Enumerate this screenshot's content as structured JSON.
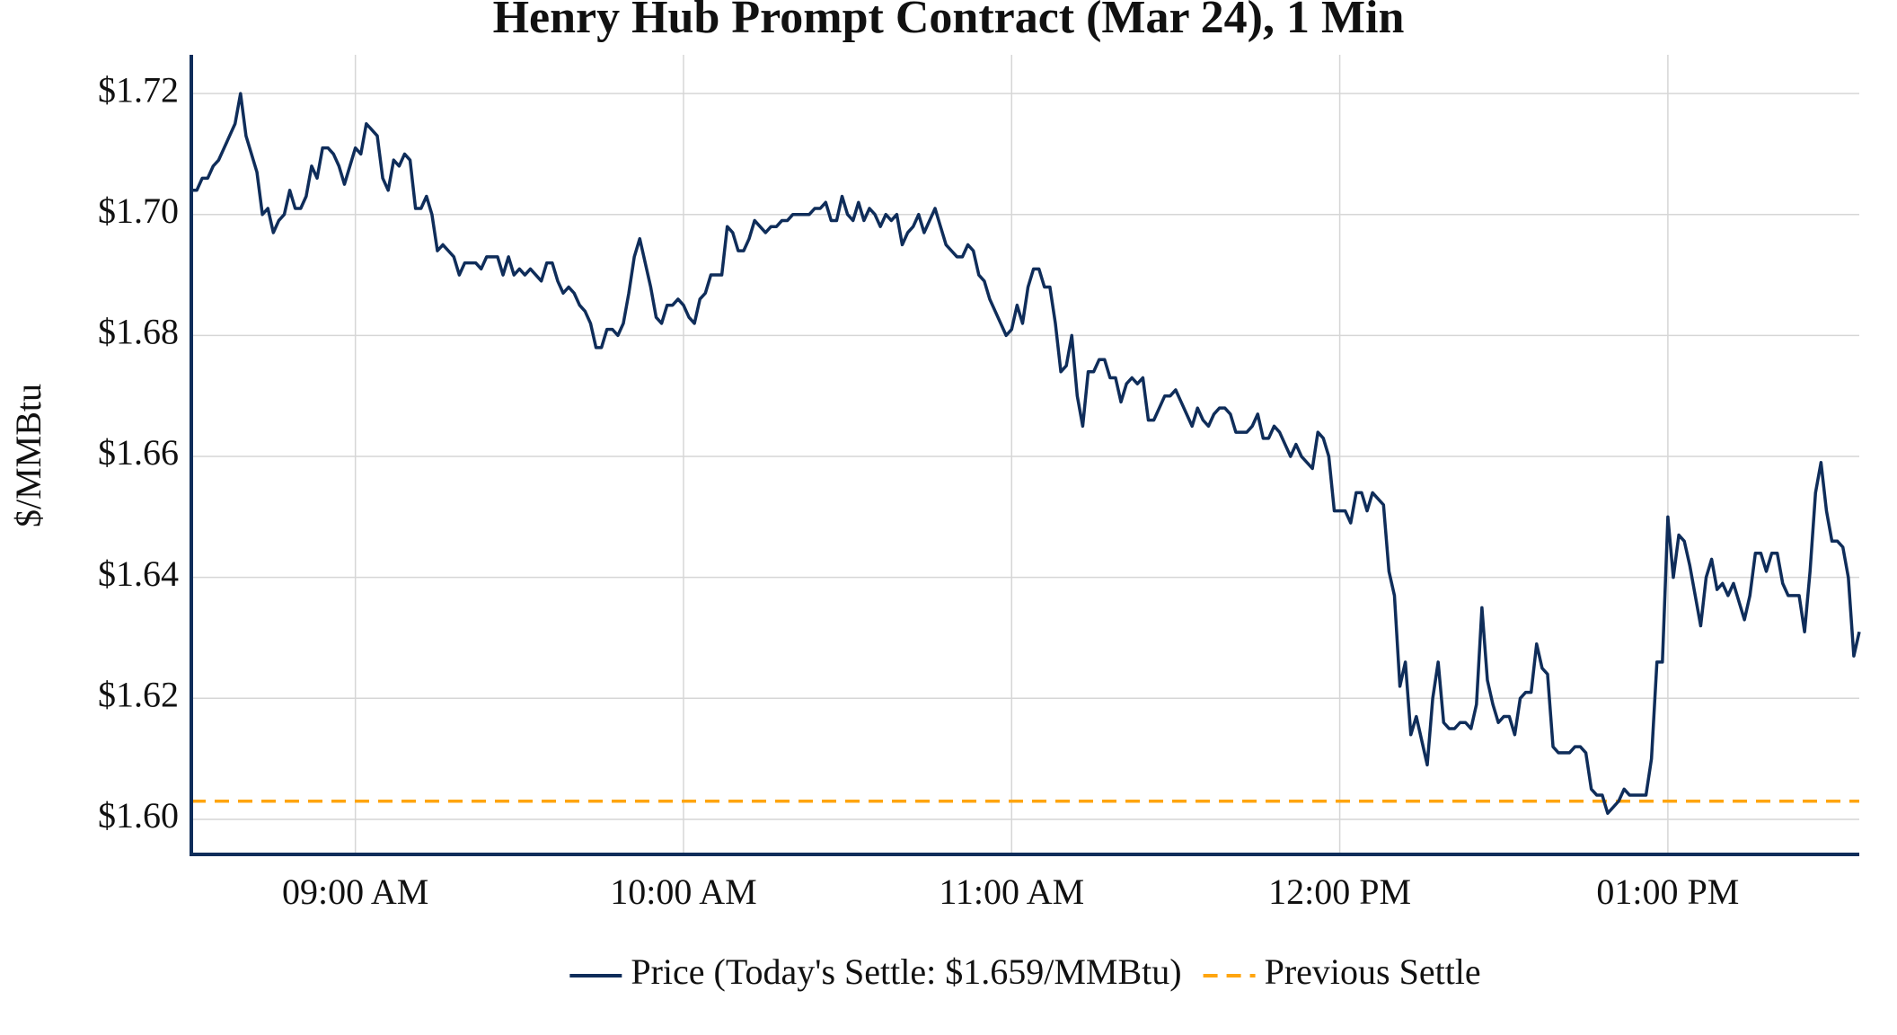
{
  "chart_data": {
    "type": "line",
    "title": "Henry Hub Prompt Contract (Mar 24), 1 Min",
    "y_label": "$/MMBtu",
    "x": [
      "08:30 AM",
      "08:31 AM",
      "08:32 AM",
      "08:33 AM",
      "08:34 AM",
      "08:35 AM",
      "08:36 AM",
      "08:37 AM",
      "08:38 AM",
      "08:39 AM",
      "08:40 AM",
      "08:41 AM",
      "08:42 AM",
      "08:43 AM",
      "08:44 AM",
      "08:45 AM",
      "08:46 AM",
      "08:47 AM",
      "08:48 AM",
      "08:49 AM",
      "08:50 AM",
      "08:51 AM",
      "08:52 AM",
      "08:53 AM",
      "08:54 AM",
      "08:55 AM",
      "08:56 AM",
      "08:57 AM",
      "08:58 AM",
      "08:59 AM",
      "09:00 AM",
      "09:01 AM",
      "09:02 AM",
      "09:03 AM",
      "09:04 AM",
      "09:05 AM",
      "09:06 AM",
      "09:07 AM",
      "09:08 AM",
      "09:09 AM",
      "09:10 AM",
      "09:11 AM",
      "09:12 AM",
      "09:13 AM",
      "09:14 AM",
      "09:15 AM",
      "09:16 AM",
      "09:17 AM",
      "09:18 AM",
      "09:19 AM",
      "09:20 AM",
      "09:21 AM",
      "09:22 AM",
      "09:23 AM",
      "09:24 AM",
      "09:25 AM",
      "09:26 AM",
      "09:27 AM",
      "09:28 AM",
      "09:29 AM",
      "09:30 AM",
      "09:31 AM",
      "09:32 AM",
      "09:33 AM",
      "09:34 AM",
      "09:35 AM",
      "09:36 AM",
      "09:37 AM",
      "09:38 AM",
      "09:39 AM",
      "09:40 AM",
      "09:41 AM",
      "09:42 AM",
      "09:43 AM",
      "09:44 AM",
      "09:45 AM",
      "09:46 AM",
      "09:47 AM",
      "09:48 AM",
      "09:49 AM",
      "09:50 AM",
      "09:51 AM",
      "09:52 AM",
      "09:53 AM",
      "09:54 AM",
      "09:55 AM",
      "09:56 AM",
      "09:57 AM",
      "09:58 AM",
      "09:59 AM",
      "10:00 AM",
      "10:01 AM",
      "10:02 AM",
      "10:03 AM",
      "10:04 AM",
      "10:05 AM",
      "10:06 AM",
      "10:07 AM",
      "10:08 AM",
      "10:09 AM",
      "10:10 AM",
      "10:11 AM",
      "10:12 AM",
      "10:13 AM",
      "10:14 AM",
      "10:15 AM",
      "10:16 AM",
      "10:17 AM",
      "10:18 AM",
      "10:19 AM",
      "10:20 AM",
      "10:21 AM",
      "10:22 AM",
      "10:23 AM",
      "10:24 AM",
      "10:25 AM",
      "10:26 AM",
      "10:27 AM",
      "10:28 AM",
      "10:29 AM",
      "10:30 AM",
      "10:31 AM",
      "10:32 AM",
      "10:33 AM",
      "10:34 AM",
      "10:35 AM",
      "10:36 AM",
      "10:37 AM",
      "10:38 AM",
      "10:39 AM",
      "10:40 AM",
      "10:41 AM",
      "10:42 AM",
      "10:43 AM",
      "10:44 AM",
      "10:45 AM",
      "10:46 AM",
      "10:47 AM",
      "10:48 AM",
      "10:49 AM",
      "10:50 AM",
      "10:51 AM",
      "10:52 AM",
      "10:53 AM",
      "10:54 AM",
      "10:55 AM",
      "10:56 AM",
      "10:57 AM",
      "10:58 AM",
      "10:59 AM",
      "11:00 AM",
      "11:01 AM",
      "11:02 AM",
      "11:03 AM",
      "11:04 AM",
      "11:05 AM",
      "11:06 AM",
      "11:07 AM",
      "11:08 AM",
      "11:09 AM",
      "11:10 AM",
      "11:11 AM",
      "11:12 AM",
      "11:13 AM",
      "11:14 AM",
      "11:15 AM",
      "11:16 AM",
      "11:17 AM",
      "11:18 AM",
      "11:19 AM",
      "11:20 AM",
      "11:21 AM",
      "11:22 AM",
      "11:23 AM",
      "11:24 AM",
      "11:25 AM",
      "11:26 AM",
      "11:27 AM",
      "11:28 AM",
      "11:29 AM",
      "11:30 AM",
      "11:31 AM",
      "11:32 AM",
      "11:33 AM",
      "11:34 AM",
      "11:35 AM",
      "11:36 AM",
      "11:37 AM",
      "11:38 AM",
      "11:39 AM",
      "11:40 AM",
      "11:41 AM",
      "11:42 AM",
      "11:43 AM",
      "11:44 AM",
      "11:45 AM",
      "11:46 AM",
      "11:47 AM",
      "11:48 AM",
      "11:49 AM",
      "11:50 AM",
      "11:51 AM",
      "11:52 AM",
      "11:53 AM",
      "11:54 AM",
      "11:55 AM",
      "11:56 AM",
      "11:57 AM",
      "11:58 AM",
      "11:59 AM",
      "12:00 PM",
      "12:01 PM",
      "12:02 PM",
      "12:03 PM",
      "12:04 PM",
      "12:05 PM",
      "12:06 PM",
      "12:07 PM",
      "12:08 PM",
      "12:09 PM",
      "12:10 PM",
      "12:11 PM",
      "12:12 PM",
      "12:13 PM",
      "12:14 PM",
      "12:15 PM",
      "12:16 PM",
      "12:17 PM",
      "12:18 PM",
      "12:19 PM",
      "12:20 PM",
      "12:21 PM",
      "12:22 PM",
      "12:23 PM",
      "12:24 PM",
      "12:25 PM",
      "12:26 PM",
      "12:27 PM",
      "12:28 PM",
      "12:29 PM",
      "12:30 PM",
      "12:31 PM",
      "12:32 PM",
      "12:33 PM",
      "12:34 PM",
      "12:35 PM",
      "12:36 PM",
      "12:37 PM",
      "12:38 PM",
      "12:39 PM",
      "12:40 PM",
      "12:41 PM",
      "12:42 PM",
      "12:43 PM",
      "12:44 PM",
      "12:45 PM",
      "12:46 PM",
      "12:47 PM",
      "12:48 PM",
      "12:49 PM",
      "12:50 PM",
      "12:51 PM",
      "12:52 PM",
      "12:53 PM",
      "12:54 PM",
      "12:55 PM",
      "12:56 PM",
      "12:57 PM",
      "12:58 PM",
      "12:59 PM",
      "01:00 PM",
      "01:01 PM",
      "01:02 PM",
      "01:03 PM",
      "01:04 PM",
      "01:05 PM",
      "01:06 PM",
      "01:07 PM",
      "01:08 PM",
      "01:09 PM",
      "01:10 PM",
      "01:11 PM",
      "01:12 PM",
      "01:13 PM",
      "01:14 PM",
      "01:15 PM",
      "01:16 PM",
      "01:17 PM",
      "01:18 PM",
      "01:19 PM",
      "01:20 PM",
      "01:21 PM",
      "01:22 PM",
      "01:23 PM",
      "01:24 PM",
      "01:25 PM",
      "01:26 PM",
      "01:27 PM",
      "01:28 PM",
      "01:29 PM",
      "01:30 PM",
      "01:31 PM",
      "01:32 PM",
      "01:33 PM",
      "01:34 PM",
      "01:35 PM"
    ],
    "series": [
      {
        "name": "Price (Today's Settle: $1.659/MMBtu)",
        "color": "#0f2d5a",
        "values": [
          1.704,
          1.704,
          1.706,
          1.706,
          1.708,
          1.709,
          1.711,
          1.713,
          1.715,
          1.72,
          1.713,
          1.71,
          1.707,
          1.7,
          1.701,
          1.697,
          1.699,
          1.7,
          1.704,
          1.701,
          1.701,
          1.703,
          1.708,
          1.706,
          1.711,
          1.711,
          1.71,
          1.708,
          1.705,
          1.708,
          1.711,
          1.71,
          1.715,
          1.714,
          1.713,
          1.706,
          1.704,
          1.709,
          1.708,
          1.71,
          1.709,
          1.701,
          1.701,
          1.703,
          1.7,
          1.694,
          1.695,
          1.694,
          1.693,
          1.69,
          1.692,
          1.692,
          1.692,
          1.691,
          1.693,
          1.693,
          1.693,
          1.69,
          1.693,
          1.69,
          1.691,
          1.69,
          1.691,
          1.69,
          1.689,
          1.692,
          1.692,
          1.689,
          1.687,
          1.688,
          1.687,
          1.685,
          1.684,
          1.682,
          1.678,
          1.678,
          1.681,
          1.681,
          1.68,
          1.682,
          1.687,
          1.693,
          1.696,
          1.692,
          1.688,
          1.683,
          1.682,
          1.685,
          1.685,
          1.686,
          1.685,
          1.683,
          1.682,
          1.686,
          1.687,
          1.69,
          1.69,
          1.69,
          1.698,
          1.697,
          1.694,
          1.694,
          1.696,
          1.699,
          1.698,
          1.697,
          1.698,
          1.698,
          1.699,
          1.699,
          1.7,
          1.7,
          1.7,
          1.7,
          1.701,
          1.701,
          1.702,
          1.699,
          1.699,
          1.703,
          1.7,
          1.699,
          1.702,
          1.699,
          1.701,
          1.7,
          1.698,
          1.7,
          1.699,
          1.7,
          1.695,
          1.697,
          1.698,
          1.7,
          1.697,
          1.699,
          1.701,
          1.698,
          1.695,
          1.694,
          1.693,
          1.693,
          1.695,
          1.694,
          1.69,
          1.689,
          1.686,
          1.684,
          1.682,
          1.68,
          1.681,
          1.685,
          1.682,
          1.688,
          1.691,
          1.691,
          1.688,
          1.688,
          1.682,
          1.674,
          1.675,
          1.68,
          1.67,
          1.665,
          1.674,
          1.674,
          1.676,
          1.676,
          1.673,
          1.673,
          1.669,
          1.672,
          1.673,
          1.672,
          1.673,
          1.666,
          1.666,
          1.668,
          1.67,
          1.67,
          1.671,
          1.669,
          1.667,
          1.665,
          1.668,
          1.666,
          1.665,
          1.667,
          1.668,
          1.668,
          1.667,
          1.664,
          1.664,
          1.664,
          1.665,
          1.667,
          1.663,
          1.663,
          1.665,
          1.664,
          1.662,
          1.66,
          1.662,
          1.66,
          1.659,
          1.658,
          1.664,
          1.663,
          1.66,
          1.651,
          1.651,
          1.651,
          1.649,
          1.654,
          1.654,
          1.651,
          1.654,
          1.653,
          1.652,
          1.641,
          1.637,
          1.622,
          1.626,
          1.614,
          1.617,
          1.613,
          1.609,
          1.62,
          1.626,
          1.616,
          1.615,
          1.615,
          1.616,
          1.616,
          1.615,
          1.619,
          1.635,
          1.623,
          1.619,
          1.616,
          1.617,
          1.617,
          1.614,
          1.62,
          1.621,
          1.621,
          1.629,
          1.625,
          1.624,
          1.612,
          1.611,
          1.611,
          1.611,
          1.612,
          1.612,
          1.611,
          1.605,
          1.604,
          1.604,
          1.601,
          1.602,
          1.603,
          1.605,
          1.604,
          1.604,
          1.604,
          1.604,
          1.61,
          1.626,
          1.626,
          1.65,
          1.64,
          1.647,
          1.646,
          1.642,
          1.637,
          1.632,
          1.64,
          1.643,
          1.638,
          1.639,
          1.637,
          1.639,
          1.636,
          1.633,
          1.637,
          1.644,
          1.644,
          1.641,
          1.644,
          1.644,
          1.639,
          1.637,
          1.637,
          1.637,
          1.631,
          1.641,
          1.654,
          1.659,
          1.651,
          1.646,
          1.646,
          1.645,
          1.64,
          1.627,
          1.631
        ]
      }
    ],
    "reference_lines": [
      {
        "name": "Previous Settle",
        "value": 1.603,
        "color": "#ffa50f",
        "dash": true
      }
    ],
    "xticks": [
      "09:00 AM",
      "10:00 AM",
      "11:00 AM",
      "12:00 PM",
      "01:00 PM"
    ],
    "ylim": [
      1.5942,
      1.7264
    ],
    "yticks": [
      {
        "value": 1.6,
        "label": "$1.60"
      },
      {
        "value": 1.62,
        "label": "$1.62"
      },
      {
        "value": 1.64,
        "label": "$1.64"
      },
      {
        "value": 1.66,
        "label": "$1.66"
      },
      {
        "value": 1.68,
        "label": "$1.68"
      },
      {
        "value": 1.7,
        "label": "$1.70"
      },
      {
        "value": 1.72,
        "label": "$1.72"
      }
    ],
    "grid": true,
    "legend": "bottom"
  }
}
